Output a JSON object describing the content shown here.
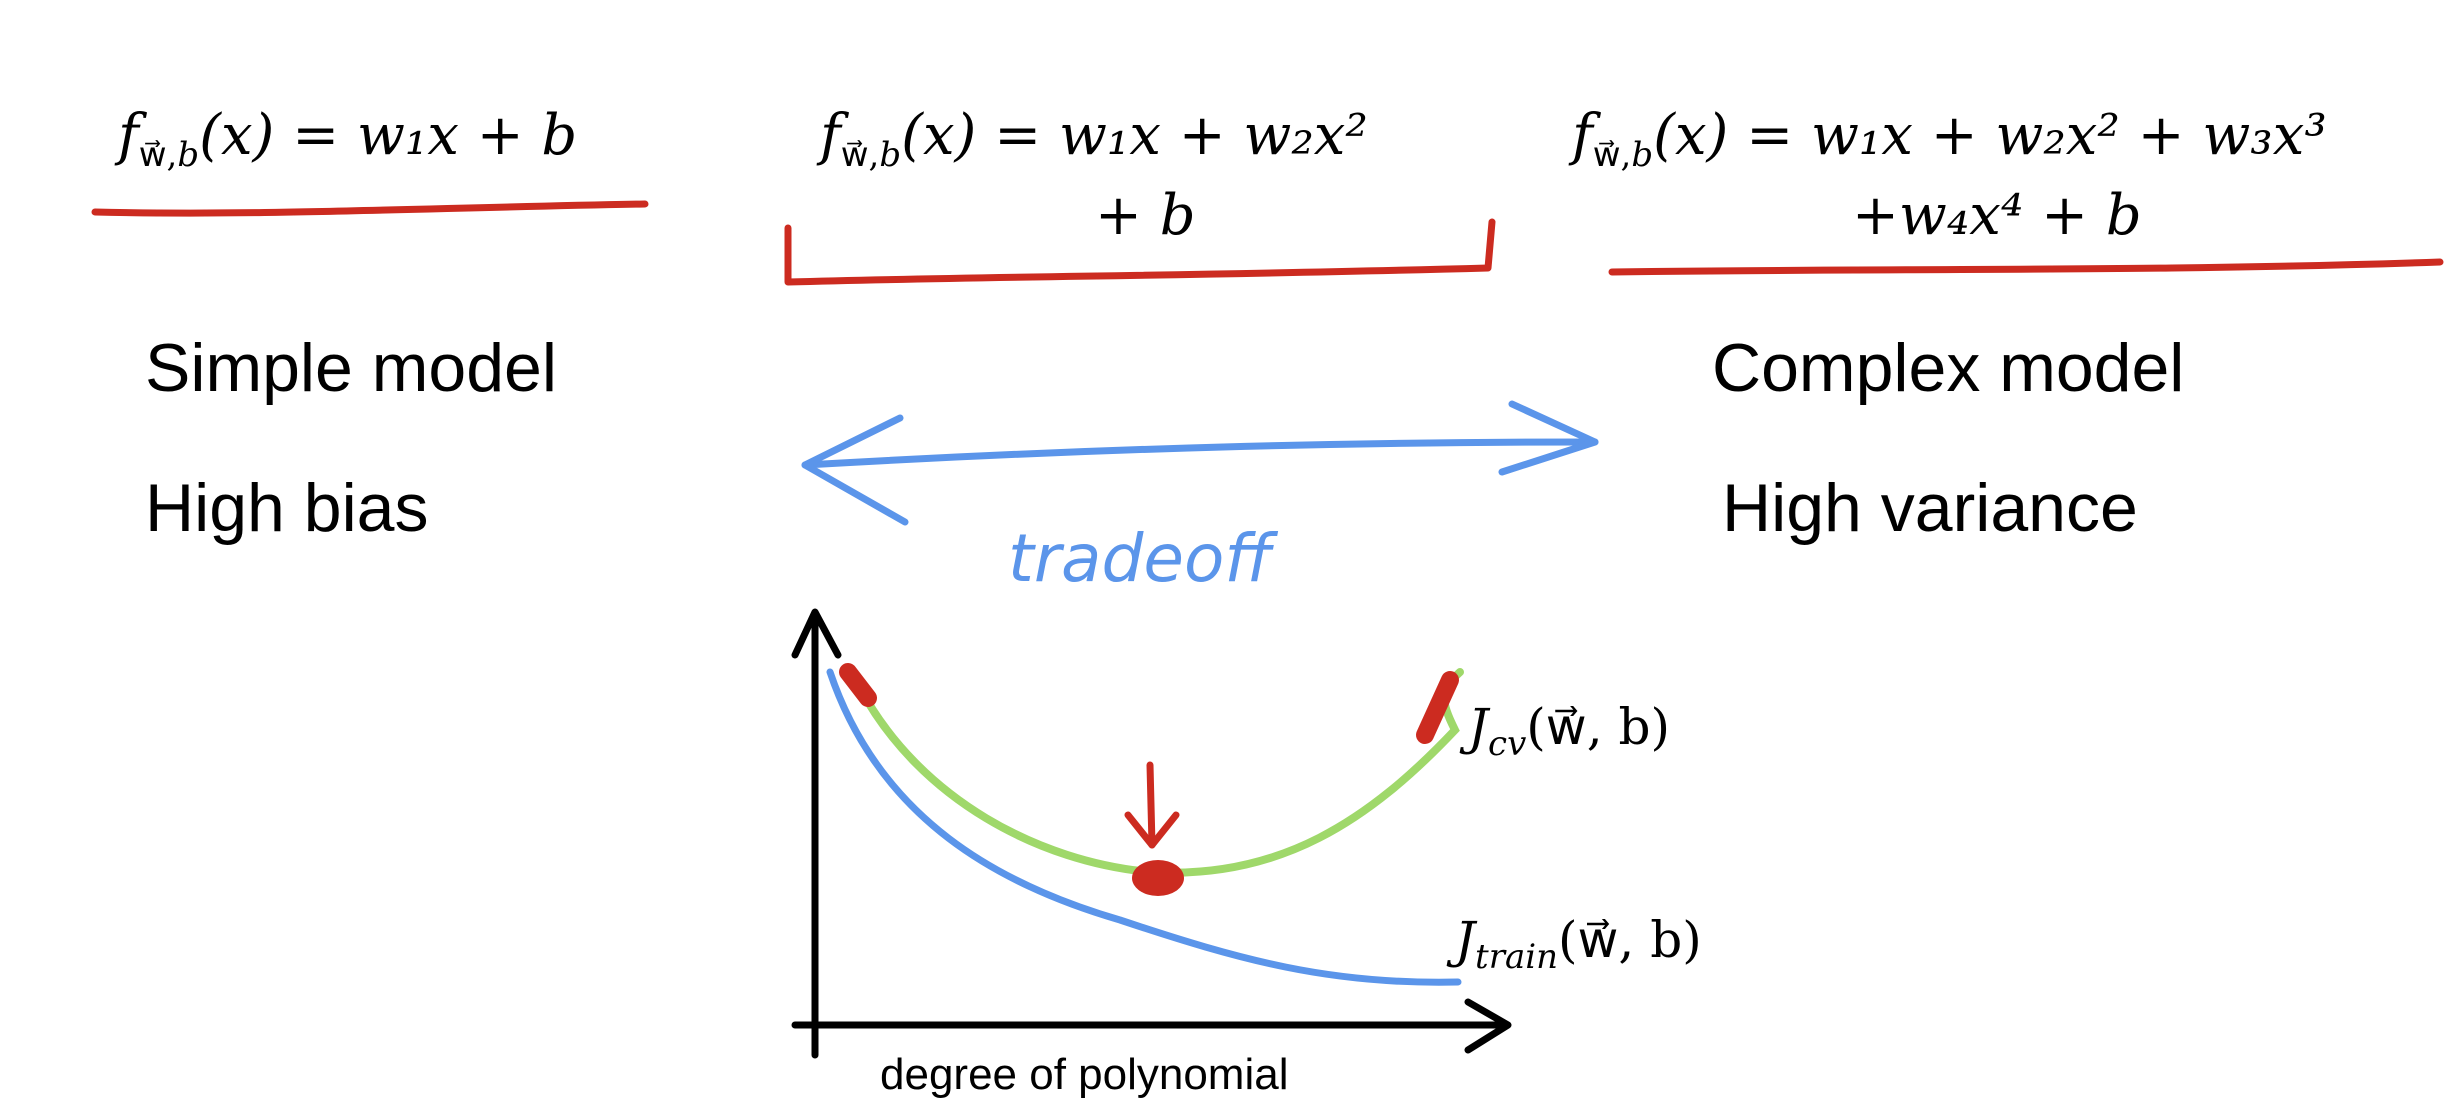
{
  "models": [
    {
      "id": "simple",
      "formula_line1": "w₁x + b",
      "formula_line2": ""
    },
    {
      "id": "medium",
      "formula_line1": "w₁x + w₂x²",
      "formula_line2": "+ b"
    },
    {
      "id": "complex",
      "formula_line1": "w₁x + w₂x² + w₃x³",
      "formula_line2": "+w₄x⁴ + b"
    }
  ],
  "labels": {
    "simple_model": "Simple model",
    "high_bias": "High bias",
    "complex_model": "Complex model",
    "high_variance": "High variance",
    "tradeoff": "tradeoff",
    "x_axis": "degree of polynomial",
    "j_cv": "J",
    "j_cv_sub": "cv",
    "j_train": "J",
    "j_train_sub": "train",
    "j_args": "(w⃗, b)"
  },
  "colors": {
    "underline": "#cc2b20",
    "arrow": "#5b95ea",
    "cv_curve": "#9fd86a",
    "train_curve": "#5b95ea",
    "marker": "#cc2b20"
  }
}
